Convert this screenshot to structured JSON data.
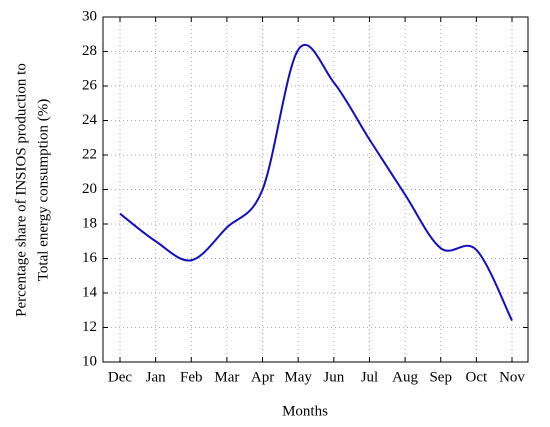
{
  "chart_data": {
    "type": "line",
    "ylabel": [
      "Percentage share of INSIOS production to",
      "Total energy consumption (%)"
    ],
    "xlabel": "Months",
    "categories": [
      "Dec",
      "Jan",
      "Feb",
      "Mar",
      "Apr",
      "May",
      "Jun",
      "Jul",
      "Aug",
      "Sep",
      "Oct",
      "Nov"
    ],
    "series": [
      {
        "color": "#1010c0",
        "values": [
          18.6,
          17.0,
          15.9,
          17.8,
          20.0,
          28.1,
          26.2,
          22.9,
          19.7,
          16.6,
          16.5,
          12.4
        ]
      }
    ],
    "ylim": [
      10,
      30
    ],
    "yticks": [
      10,
      12,
      14,
      16,
      18,
      20,
      22,
      24,
      26,
      28,
      30
    ],
    "grid": true
  }
}
